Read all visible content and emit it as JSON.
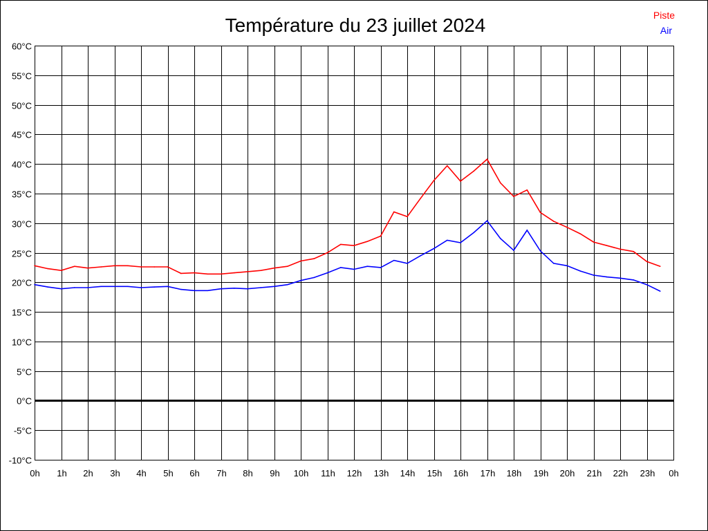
{
  "chart_data": {
    "type": "line",
    "title": "Température du 23 juillet 2024",
    "xlabel": "",
    "ylabel": "",
    "ylim": [
      -10,
      60
    ],
    "xlim": [
      0,
      24
    ],
    "grid": true,
    "legend_position": "top-right",
    "y_ticks": [
      "60°C",
      "55°C",
      "50°C",
      "45°C",
      "40°C",
      "35°C",
      "30°C",
      "25°C",
      "20°C",
      "15°C",
      "10°C",
      "5°C",
      "0°C",
      "-5°C",
      "-10°C"
    ],
    "y_tick_values": [
      60,
      55,
      50,
      45,
      40,
      35,
      30,
      25,
      20,
      15,
      10,
      5,
      0,
      -5,
      -10
    ],
    "x_ticks": [
      "0h",
      "1h",
      "2h",
      "3h",
      "4h",
      "5h",
      "6h",
      "7h",
      "8h",
      "9h",
      "10h",
      "11h",
      "12h",
      "13h",
      "14h",
      "15h",
      "16h",
      "17h",
      "18h",
      "19h",
      "20h",
      "21h",
      "22h",
      "23h",
      "0h"
    ],
    "x": [
      0,
      0.5,
      1,
      1.5,
      2,
      2.5,
      3,
      3.5,
      4,
      4.5,
      5,
      5.5,
      6,
      6.5,
      7,
      7.5,
      8,
      8.5,
      9,
      9.5,
      10,
      10.5,
      11,
      11.5,
      12,
      12.5,
      13,
      13.5,
      14,
      14.5,
      15,
      15.5,
      16,
      16.5,
      17,
      17.5,
      18,
      18.5,
      19,
      19.5,
      20,
      20.5,
      21,
      21.5,
      22,
      22.5,
      23,
      23.5
    ],
    "series": [
      {
        "name": "Piste",
        "color": "#ff0000",
        "values": [
          22.8,
          22.3,
          22.0,
          22.7,
          22.4,
          22.6,
          22.8,
          22.8,
          22.6,
          22.6,
          22.6,
          21.5,
          21.6,
          21.4,
          21.4,
          21.6,
          21.8,
          22.0,
          22.4,
          22.7,
          23.6,
          24.0,
          25.0,
          26.4,
          26.2,
          26.9,
          27.8,
          31.9,
          31.1,
          34.2,
          37.2,
          39.7,
          37.1,
          38.8,
          40.8,
          36.8,
          34.5,
          35.6,
          31.8,
          30.3,
          29.3,
          28.2,
          26.8,
          26.2,
          25.6,
          25.2,
          23.5,
          22.7
        ]
      },
      {
        "name": "Air",
        "color": "#0000ff",
        "values": [
          19.6,
          19.2,
          18.9,
          19.1,
          19.1,
          19.3,
          19.3,
          19.3,
          19.1,
          19.2,
          19.3,
          18.8,
          18.6,
          18.6,
          18.9,
          19.0,
          18.9,
          19.1,
          19.3,
          19.6,
          20.3,
          20.8,
          21.6,
          22.5,
          22.2,
          22.7,
          22.5,
          23.7,
          23.2,
          24.5,
          25.7,
          27.1,
          26.7,
          28.4,
          30.4,
          27.4,
          25.4,
          28.8,
          25.3,
          23.2,
          22.8,
          21.9,
          21.2,
          20.9,
          20.7,
          20.4,
          19.6,
          18.5
        ]
      }
    ]
  }
}
